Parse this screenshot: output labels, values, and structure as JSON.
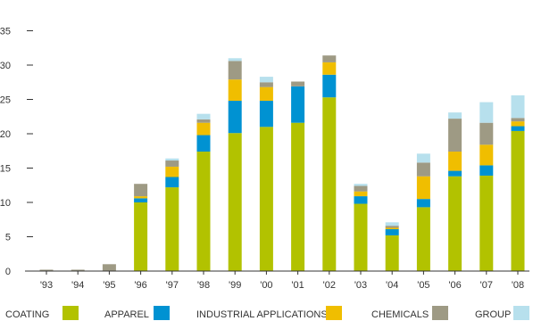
{
  "chart_data": {
    "type": "bar",
    "stacked": true,
    "categories": [
      "'93",
      "'94",
      "'95",
      "'96",
      "'97",
      "'98",
      "'99",
      "'00",
      "'01",
      "'02",
      "'03",
      "'04",
      "'05",
      "'06",
      "'07",
      "'08"
    ],
    "series": [
      {
        "name": "COATING",
        "color": "#b2c200",
        "values": [
          0,
          0,
          0,
          10.0,
          12.2,
          17.4,
          20.1,
          21.0,
          21.6,
          25.3,
          9.8,
          5.2,
          9.3,
          13.8,
          13.9,
          20.4
        ]
      },
      {
        "name": "APPAREL",
        "color": "#0092d2",
        "values": [
          0,
          0,
          0,
          0.6,
          1.5,
          2.4,
          4.7,
          3.8,
          5.3,
          3.3,
          1.1,
          0.9,
          1.2,
          0.8,
          1.5,
          0.7
        ]
      },
      {
        "name": "INDUSTRIAL APPLICATIONS",
        "color": "#f0be00",
        "values": [
          0,
          0,
          0,
          0.3,
          1.5,
          1.8,
          3.1,
          2.0,
          0,
          1.8,
          0.7,
          0.2,
          3.3,
          2.8,
          3.0,
          0.7
        ]
      },
      {
        "name": "CHEMICALS",
        "color": "#9e9a84",
        "values": [
          0.2,
          0.2,
          1.0,
          1.8,
          0.9,
          0.5,
          2.7,
          0.7,
          0.7,
          1.0,
          0.8,
          0.3,
          2.0,
          4.8,
          3.2,
          0.5
        ]
      },
      {
        "name": "GROUP",
        "color": "#b7e0ed",
        "values": [
          0,
          0,
          0,
          0,
          0.3,
          0.8,
          0.4,
          0.8,
          0,
          0,
          0.3,
          0.5,
          1.3,
          0.9,
          3.0,
          3.3
        ]
      }
    ],
    "yticks": [
      "0",
      "5",
      "10",
      "15",
      "20",
      "25",
      "30",
      "35"
    ],
    "ylim": [
      0,
      35
    ],
    "grid": false,
    "legend_position": "bottom"
  }
}
